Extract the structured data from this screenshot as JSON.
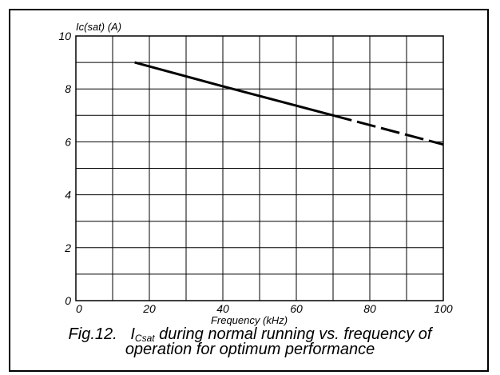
{
  "chart_data": {
    "type": "line",
    "ylabel": "Ic(sat) (A)",
    "xlabel": "Frequency (kHz)",
    "xlim": [
      0,
      100
    ],
    "ylim": [
      0,
      10
    ],
    "x_ticks": [
      "0",
      "20",
      "40",
      "60",
      "80",
      "100"
    ],
    "y_ticks": [
      "0",
      "2",
      "4",
      "6",
      "8",
      "10"
    ],
    "grid": true,
    "segments": [
      {
        "style": "solid",
        "x": [
          16,
          40,
          70
        ],
        "y": [
          9.0,
          8.1,
          7.0
        ]
      },
      {
        "style": "dashed",
        "x": [
          70,
          100
        ],
        "y": [
          7.0,
          5.9
        ]
      }
    ],
    "caption": {
      "prefix": "Fig.12.",
      "symbol": "I",
      "symbol_sub": "Csat",
      "text_line1": " during normal running vs. frequency of",
      "text_line2": "operation for optimum performance"
    }
  }
}
